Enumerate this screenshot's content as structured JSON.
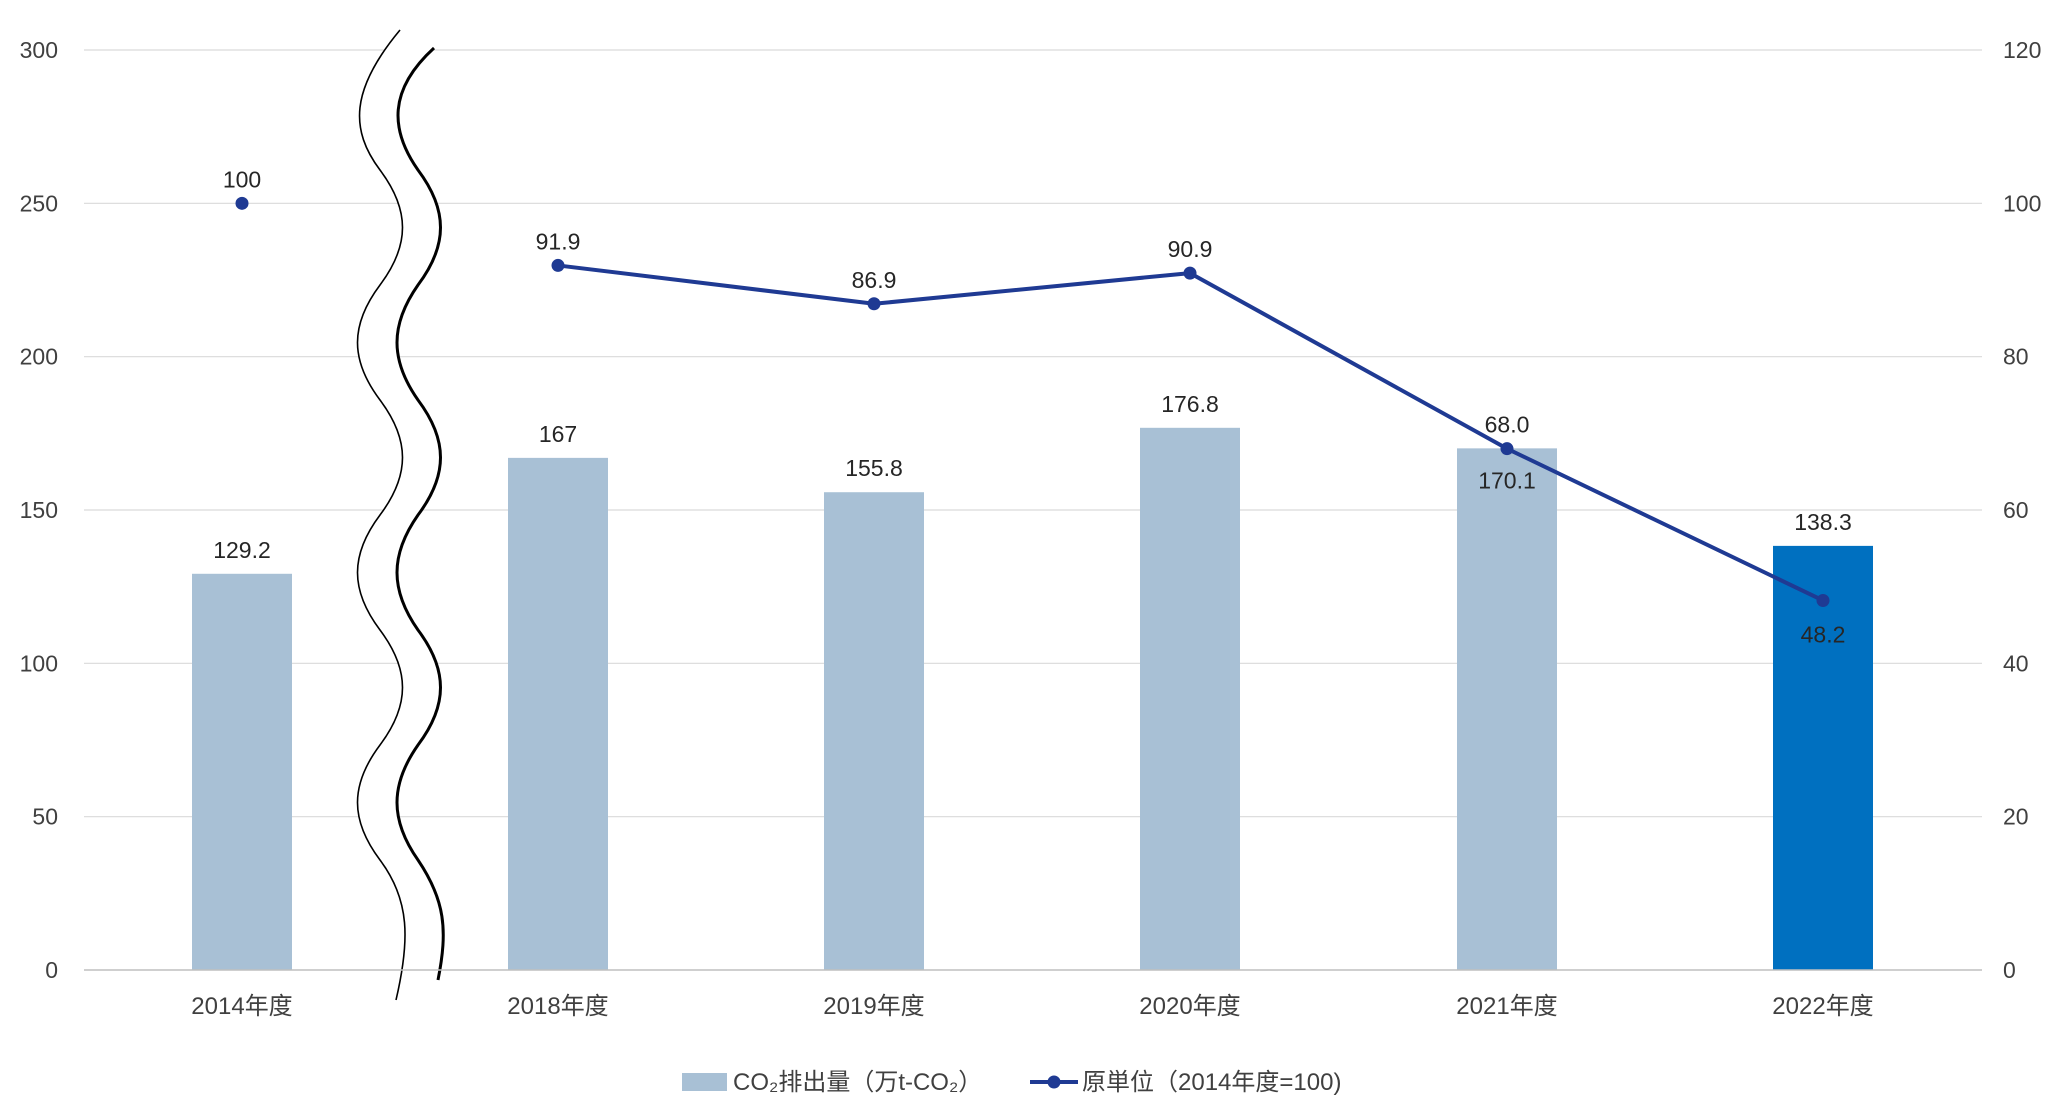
{
  "chart_data": {
    "type": "bar",
    "categories": [
      "2014年度",
      "2018年度",
      "2019年度",
      "2020年度",
      "2021年度",
      "2022年度"
    ],
    "axis_break_after_category": 0,
    "y_left": {
      "ticks": [
        "0",
        "50",
        "100",
        "150",
        "200",
        "250",
        "300"
      ],
      "ylim": [
        0,
        300
      ]
    },
    "y_right": {
      "ticks": [
        "0",
        "20",
        "40",
        "60",
        "80",
        "100",
        "120"
      ],
      "ylim": [
        0,
        120
      ]
    },
    "series": [
      {
        "name": "CO₂排出量（万t-CO₂）",
        "type": "bar",
        "axis": "left",
        "values": [
          129.2,
          167,
          155.8,
          176.8,
          170.1,
          138.3
        ],
        "labels": [
          "129.2",
          "167",
          "155.8",
          "176.8",
          "170.1",
          "138.3"
        ],
        "color": "#a8c0d5",
        "highlight_index": 5,
        "highlight_color": "#0070c0"
      },
      {
        "name": "原単位（2014年度=100)",
        "type": "line",
        "axis": "right",
        "values": [
          100,
          91.9,
          86.9,
          90.9,
          68.0,
          48.2
        ],
        "labels": [
          "100",
          "91.9",
          "86.9",
          "90.9",
          "68.0",
          "48.2"
        ],
        "color": "#1f3a93",
        "connect_from_index": 1
      }
    ],
    "grid": true,
    "legend_position": "bottom"
  }
}
